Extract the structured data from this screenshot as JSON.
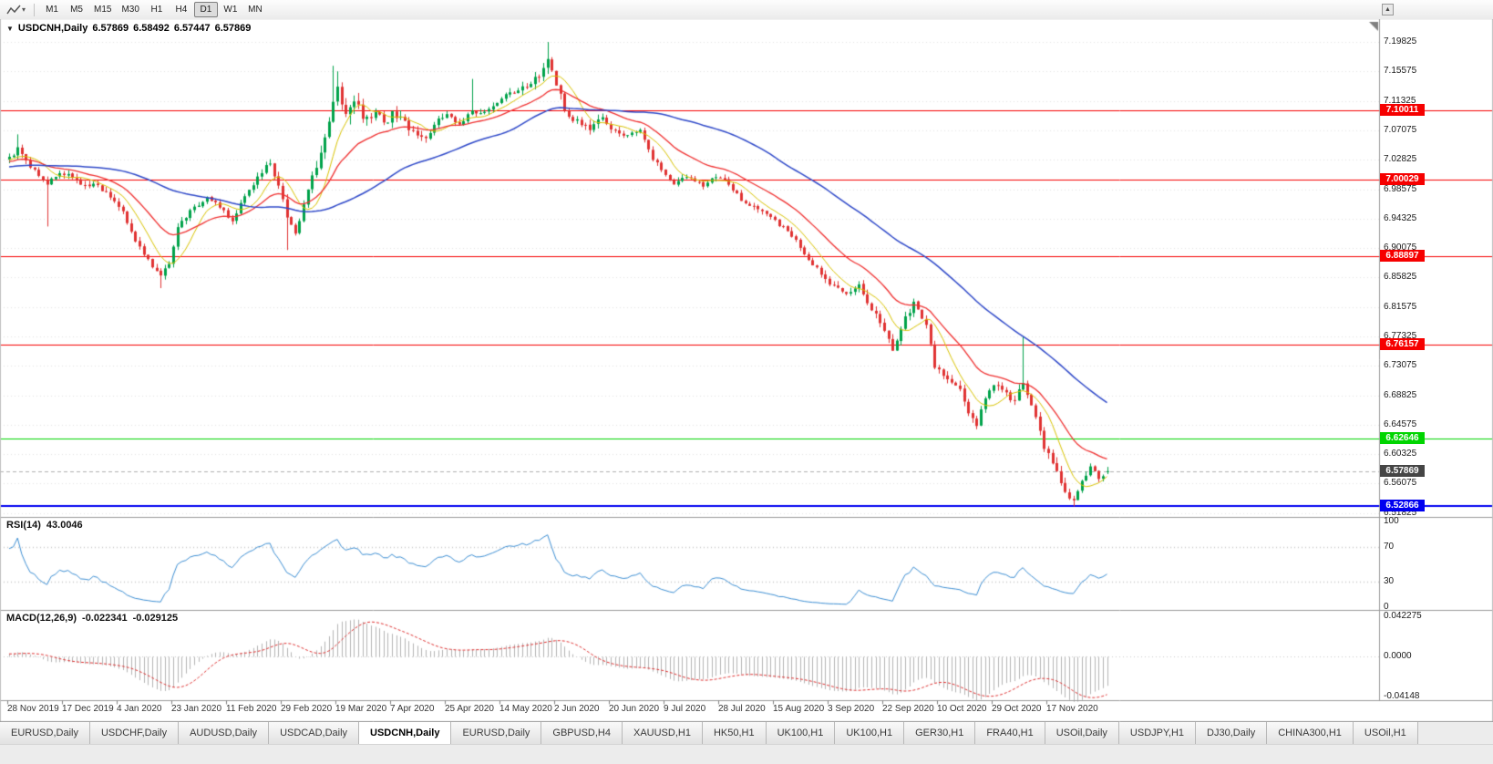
{
  "toolbar": {
    "timeframes": [
      {
        "label": "M1",
        "active": false
      },
      {
        "label": "M5",
        "active": false
      },
      {
        "label": "M15",
        "active": false
      },
      {
        "label": "M30",
        "active": false
      },
      {
        "label": "H1",
        "active": false
      },
      {
        "label": "H4",
        "active": false
      },
      {
        "label": "D1",
        "active": true
      },
      {
        "label": "W1",
        "active": false
      },
      {
        "label": "MN",
        "active": false
      }
    ],
    "icons": {
      "chart_tool": "line-chart-icon",
      "dropdown": "chevron-down-icon",
      "scroll_up": "scroll-up-arrow-icon"
    }
  },
  "chart_data": {
    "type": "candlestick",
    "title": "USDCNH,Daily",
    "symbol": "USDCNH",
    "timeframe": "Daily",
    "quote": {
      "open": 6.57869,
      "high": 6.58492,
      "low": 6.57447,
      "close": 6.57869
    },
    "bars": 262,
    "candle_up_color": "#00A24A",
    "candle_down_color": "#E03232",
    "y_axis": {
      "min": 6.514,
      "max": 7.23,
      "tick_labels": [
        "7.19825",
        "7.15575",
        "7.11325",
        "7.07075",
        "7.02825",
        "6.98575",
        "6.94325",
        "6.90075",
        "6.85825",
        "6.81575",
        "6.77325",
        "6.73075",
        "6.68825",
        "6.64575",
        "6.60325",
        "6.56075",
        "6.51825"
      ]
    },
    "x_labels": [
      "28 Nov 2019",
      "17 Dec 2019",
      "4 Jan 2020",
      "23 Jan 2020",
      "11 Feb 2020",
      "29 Feb 2020",
      "19 Mar 2020",
      "7 Apr 2020",
      "25 Apr 2020",
      "14 May 2020",
      "2 Jun 2020",
      "20 Jun 2020",
      "9 Jul 2020",
      "28 Jul 2020",
      "15 Aug 2020",
      "3 Sep 2020",
      "22 Sep 2020",
      "10 Oct 2020",
      "29 Oct 2020",
      "17 Nov 2020"
    ],
    "close_anchors": [
      [
        0,
        7.03
      ],
      [
        2,
        7.045
      ],
      [
        5,
        7.02
      ],
      [
        9,
        6.995
      ],
      [
        11,
        7.005
      ],
      [
        14,
        7.01
      ],
      [
        17,
        6.995
      ],
      [
        21,
        6.99
      ],
      [
        24,
        6.975
      ],
      [
        27,
        6.955
      ],
      [
        30,
        6.91
      ],
      [
        34,
        6.875
      ],
      [
        36,
        6.86
      ],
      [
        38,
        6.88
      ],
      [
        40,
        6.93
      ],
      [
        43,
        6.955
      ],
      [
        47,
        6.975
      ],
      [
        50,
        6.96
      ],
      [
        53,
        6.94
      ],
      [
        56,
        6.975
      ],
      [
        60,
        7.01
      ],
      [
        62,
        7.025
      ],
      [
        64,
        6.99
      ],
      [
        66,
        6.945
      ],
      [
        68,
        6.92
      ],
      [
        70,
        6.96
      ],
      [
        73,
        7.02
      ],
      [
        75,
        7.06
      ],
      [
        77,
        7.11
      ],
      [
        78,
        7.13
      ],
      [
        80,
        7.09
      ],
      [
        82,
        7.11
      ],
      [
        85,
        7.085
      ],
      [
        87,
        7.1
      ],
      [
        89,
        7.08
      ],
      [
        91,
        7.095
      ],
      [
        93,
        7.09
      ],
      [
        95,
        7.075
      ],
      [
        99,
        7.06
      ],
      [
        102,
        7.085
      ],
      [
        104,
        7.095
      ],
      [
        107,
        7.08
      ],
      [
        110,
        7.1
      ],
      [
        113,
        7.095
      ],
      [
        116,
        7.11
      ],
      [
        119,
        7.125
      ],
      [
        122,
        7.13
      ],
      [
        126,
        7.15
      ],
      [
        128,
        7.17
      ],
      [
        130,
        7.14
      ],
      [
        132,
        7.1
      ],
      [
        134,
        7.085
      ],
      [
        138,
        7.075
      ],
      [
        141,
        7.09
      ],
      [
        143,
        7.075
      ],
      [
        146,
        7.065
      ],
      [
        150,
        7.07
      ],
      [
        153,
        7.03
      ],
      [
        156,
        7.005
      ],
      [
        158,
        6.995
      ],
      [
        161,
        7.005
      ],
      [
        165,
        6.99
      ],
      [
        168,
        7.005
      ],
      [
        171,
        6.995
      ],
      [
        174,
        6.97
      ],
      [
        178,
        6.955
      ],
      [
        181,
        6.945
      ],
      [
        184,
        6.93
      ],
      [
        187,
        6.91
      ],
      [
        190,
        6.885
      ],
      [
        194,
        6.855
      ],
      [
        196,
        6.845
      ],
      [
        199,
        6.835
      ],
      [
        202,
        6.845
      ],
      [
        205,
        6.815
      ],
      [
        208,
        6.78
      ],
      [
        210,
        6.755
      ],
      [
        213,
        6.8
      ],
      [
        215,
        6.82
      ],
      [
        218,
        6.79
      ],
      [
        220,
        6.73
      ],
      [
        223,
        6.715
      ],
      [
        226,
        6.695
      ],
      [
        228,
        6.66
      ],
      [
        230,
        6.645
      ],
      [
        232,
        6.685
      ],
      [
        234,
        6.705
      ],
      [
        236,
        6.695
      ],
      [
        239,
        6.68
      ],
      [
        241,
        6.71
      ],
      [
        244,
        6.66
      ],
      [
        246,
        6.615
      ],
      [
        249,
        6.575
      ],
      [
        251,
        6.55
      ],
      [
        253,
        6.535
      ],
      [
        255,
        6.565
      ],
      [
        257,
        6.585
      ],
      [
        259,
        6.57
      ],
      [
        261,
        6.57869
      ]
    ],
    "spikes": [
      {
        "i": 2,
        "high": 7.065
      },
      {
        "i": 9,
        "low": 6.932
      },
      {
        "i": 36,
        "low": 6.843
      },
      {
        "i": 66,
        "low": 6.898
      },
      {
        "i": 77,
        "high": 7.164
      },
      {
        "i": 78,
        "high": 7.156
      },
      {
        "i": 110,
        "high": 7.145
      },
      {
        "i": 128,
        "high": 7.19825
      },
      {
        "i": 241,
        "high": 6.773
      },
      {
        "i": 253,
        "low": 6.528
      },
      {
        "i": 261,
        "high": 6.58492,
        "low": 6.57447
      }
    ],
    "volatility_anchors": [
      [
        0,
        0.9
      ],
      [
        28,
        1.0
      ],
      [
        55,
        0.8
      ],
      [
        68,
        1.2
      ],
      [
        74,
        2.0
      ],
      [
        80,
        2.4
      ],
      [
        90,
        1.6
      ],
      [
        100,
        1.0
      ],
      [
        118,
        1.0
      ],
      [
        126,
        1.5
      ],
      [
        133,
        1.3
      ],
      [
        150,
        0.9
      ],
      [
        175,
        0.8
      ],
      [
        205,
        1.2
      ],
      [
        222,
        1.1
      ],
      [
        235,
        1.2
      ],
      [
        248,
        1.4
      ],
      [
        261,
        0.8
      ]
    ],
    "horizontal_lines": [
      {
        "value": 7.10011,
        "label": "7.10011",
        "color": "#f60000",
        "width": 1
      },
      {
        "value": 7.00029,
        "label": "7.00029",
        "color": "#f60000",
        "width": 1
      },
      {
        "value": 6.88897,
        "label": "6.88897",
        "color": "#f60000",
        "width": 1
      },
      {
        "value": 6.76157,
        "label": "6.76157",
        "color": "#f60000",
        "width": 1
      },
      {
        "value": 6.62646,
        "label": "6.62646",
        "color": "#00d500",
        "width": 1
      },
      {
        "value": 6.52866,
        "label": "6.52866",
        "color": "#0000f0",
        "width": 2
      }
    ],
    "current_price": {
      "value": 6.57869,
      "label": "6.57869",
      "tag_color": "#454545",
      "line_color": "#b0b0b0"
    },
    "moving_averages": [
      {
        "type": "sma",
        "period": 8,
        "color": "#d9c300",
        "width": 1
      },
      {
        "type": "ema",
        "period": 21,
        "color": "#f03030",
        "width": 1.3
      },
      {
        "type": "sma",
        "period": 55,
        "color": "#2f49c9",
        "width": 1.5
      }
    ],
    "indicators": {
      "rsi": {
        "name": "RSI(14)",
        "period": 14,
        "value": 43.0046,
        "levels": [
          70,
          30
        ],
        "range": [
          0,
          100
        ],
        "axis_labels": [
          "100",
          "70",
          "30",
          "0"
        ],
        "color": "#3d8fd4"
      },
      "macd": {
        "name": "MACD(12,26,9)",
        "fast": 12,
        "slow": 26,
        "signal": 9,
        "macd_value": -0.022341,
        "signal_value": -0.029125,
        "range": [
          -0.04148,
          0.042275
        ],
        "axis_labels": [
          "0.042275",
          "0.0000",
          "-0.04148"
        ],
        "histogram_color": "#b4b4b4",
        "signal_color": "#e03030"
      }
    }
  },
  "tabs": [
    {
      "label": "EURUSD,Daily",
      "active": false
    },
    {
      "label": "USDCHF,Daily",
      "active": false
    },
    {
      "label": "AUDUSD,Daily",
      "active": false
    },
    {
      "label": "USDCAD,Daily",
      "active": false
    },
    {
      "label": "USDCNH,Daily",
      "active": true
    },
    {
      "label": "EURUSD,Daily",
      "active": false
    },
    {
      "label": "GBPUSD,H4",
      "active": false
    },
    {
      "label": "XAUUSD,H1",
      "active": false
    },
    {
      "label": "HK50,H1",
      "active": false
    },
    {
      "label": "UK100,H1",
      "active": false
    },
    {
      "label": "UK100,H1",
      "active": false
    },
    {
      "label": "GER30,H1",
      "active": false
    },
    {
      "label": "FRA40,H1",
      "active": false
    },
    {
      "label": "USOil,Daily",
      "active": false
    },
    {
      "label": "USDJPY,H1",
      "active": false
    },
    {
      "label": "DJ30,Daily",
      "active": false
    },
    {
      "label": "CHINA300,H1",
      "active": false
    },
    {
      "label": "USOil,H1",
      "active": false
    }
  ]
}
